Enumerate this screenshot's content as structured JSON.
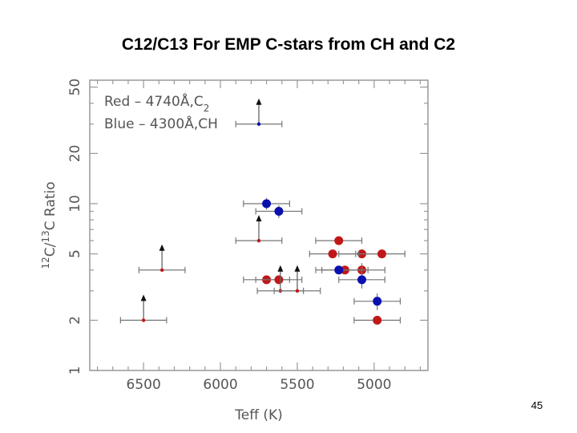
{
  "slide": {
    "title": "C12/C13 For EMP C-stars from CH and C2",
    "page_number": "45"
  },
  "colors": {
    "red": "#c01818",
    "blue": "#0a10b0",
    "arrow_stem": "#666666",
    "error_bar": "#777777",
    "axis": "#999999"
  },
  "chart_data": {
    "type": "scatter",
    "xlabel": "Teff (K)",
    "ylabel": "12C/13C Ratio",
    "xlim": [
      6850,
      4650
    ],
    "ylim": [
      1,
      55
    ],
    "x_scale": "linear",
    "y_scale": "log",
    "x_ticks": [
      6500,
      6000,
      5500,
      5000
    ],
    "x_tick_labels": [
      "6500",
      "6000",
      "5500",
      "5000"
    ],
    "y_ticks": [
      1,
      2,
      5,
      10,
      20,
      50
    ],
    "y_tick_labels": [
      "1",
      "2",
      "5",
      "10",
      "20",
      "50"
    ],
    "legend": {
      "position": "top-left",
      "entries": [
        {
          "color": "Red",
          "sep": "–",
          "wavelength": "4740Å",
          "molecule": "C",
          "sub": "2"
        },
        {
          "color": "Blue",
          "sep": "–",
          "wavelength": "4300Å",
          "molecule": "CH",
          "sub": ""
        }
      ]
    },
    "series": [
      {
        "name": "Red",
        "color": "#c01818",
        "points": [
          {
            "x": 5230,
            "y": 6.0,
            "xerr": 150,
            "yerr": 0,
            "lower_limit": false
          },
          {
            "x": 5270,
            "y": 5.0,
            "xerr": 150,
            "yerr": 0,
            "lower_limit": false
          },
          {
            "x": 5080,
            "y": 5.0,
            "xerr": 150,
            "yerr": 0,
            "lower_limit": false
          },
          {
            "x": 4950,
            "y": 5.0,
            "xerr": 150,
            "yerr": 0,
            "lower_limit": false
          },
          {
            "x": 5080,
            "y": 4.0,
            "xerr": 150,
            "yerr": 0.4,
            "lower_limit": false
          },
          {
            "x": 5190,
            "y": 4.0,
            "xerr": 150,
            "yerr": 0,
            "lower_limit": false
          },
          {
            "x": 5700,
            "y": 3.5,
            "xerr": 150,
            "yerr": 0,
            "lower_limit": false
          },
          {
            "x": 5620,
            "y": 3.5,
            "xerr": 150,
            "yerr": 0,
            "lower_limit": false
          },
          {
            "x": 4980,
            "y": 2.0,
            "xerr": 150,
            "yerr": 0,
            "lower_limit": false
          },
          {
            "x": 6500,
            "y": 2.0,
            "xerr": 150,
            "yerr": 0,
            "lower_limit": true,
            "small": true
          },
          {
            "x": 6380,
            "y": 4.0,
            "xerr": 150,
            "yerr": 0,
            "lower_limit": true,
            "small": true
          },
          {
            "x": 5750,
            "y": 6.0,
            "xerr": 150,
            "yerr": 0,
            "lower_limit": true,
            "small": true
          },
          {
            "x": 5610,
            "y": 3.0,
            "xerr": 150,
            "yerr": 0,
            "lower_limit": true,
            "small": true
          },
          {
            "x": 5500,
            "y": 3.0,
            "xerr": 150,
            "yerr": 0,
            "lower_limit": true,
            "small": true
          }
        ]
      },
      {
        "name": "Blue",
        "color": "#0a10b0",
        "points": [
          {
            "x": 5700,
            "y": 10.0,
            "xerr": 150,
            "yerr": 0.8,
            "lower_limit": false
          },
          {
            "x": 5620,
            "y": 9.0,
            "xerr": 150,
            "yerr": 0.8,
            "lower_limit": false
          },
          {
            "x": 5230,
            "y": 4.0,
            "xerr": 150,
            "yerr": 0,
            "lower_limit": false
          },
          {
            "x": 5080,
            "y": 3.5,
            "xerr": 150,
            "yerr": 0.4,
            "lower_limit": false
          },
          {
            "x": 4980,
            "y": 2.6,
            "xerr": 150,
            "yerr": 0.3,
            "lower_limit": false
          },
          {
            "x": 5750,
            "y": 30.0,
            "xerr": 150,
            "yerr": 0,
            "lower_limit": true,
            "small": true
          }
        ]
      }
    ]
  }
}
